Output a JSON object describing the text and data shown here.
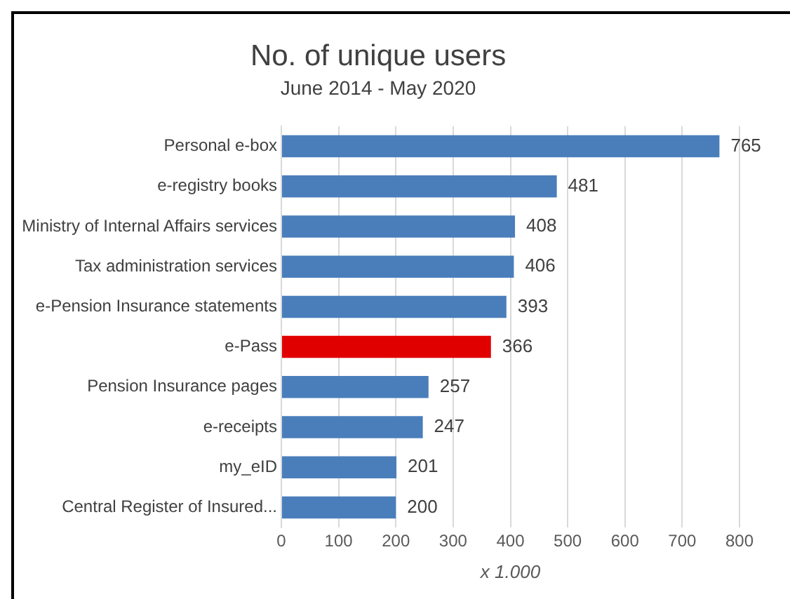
{
  "chart_data": {
    "type": "bar",
    "orientation": "horizontal",
    "title": "No. of unique users",
    "subtitle": "June 2014 - May 2020",
    "xlabel": "x 1.000",
    "categories": [
      "Personal e-box",
      "e-registry books",
      "Ministry of Internal Affairs services",
      "Tax administration services",
      "e-Pension Insurance statements",
      "e-Pass",
      "Pension Insurance pages",
      "e-receipts",
      "my_eID",
      "Central Register of Insured..."
    ],
    "values": [
      765,
      481,
      408,
      406,
      393,
      366,
      257,
      247,
      201,
      200
    ],
    "colors": [
      "#4a7ebb",
      "#4a7ebb",
      "#4a7ebb",
      "#4a7ebb",
      "#4a7ebb",
      "#e00000",
      "#4a7ebb",
      "#4a7ebb",
      "#4a7ebb",
      "#4a7ebb"
    ],
    "xlim": [
      0,
      800
    ],
    "xticks": [
      0,
      100,
      200,
      300,
      400,
      500,
      600,
      700,
      800
    ],
    "grid": "x",
    "data_labels": true
  }
}
